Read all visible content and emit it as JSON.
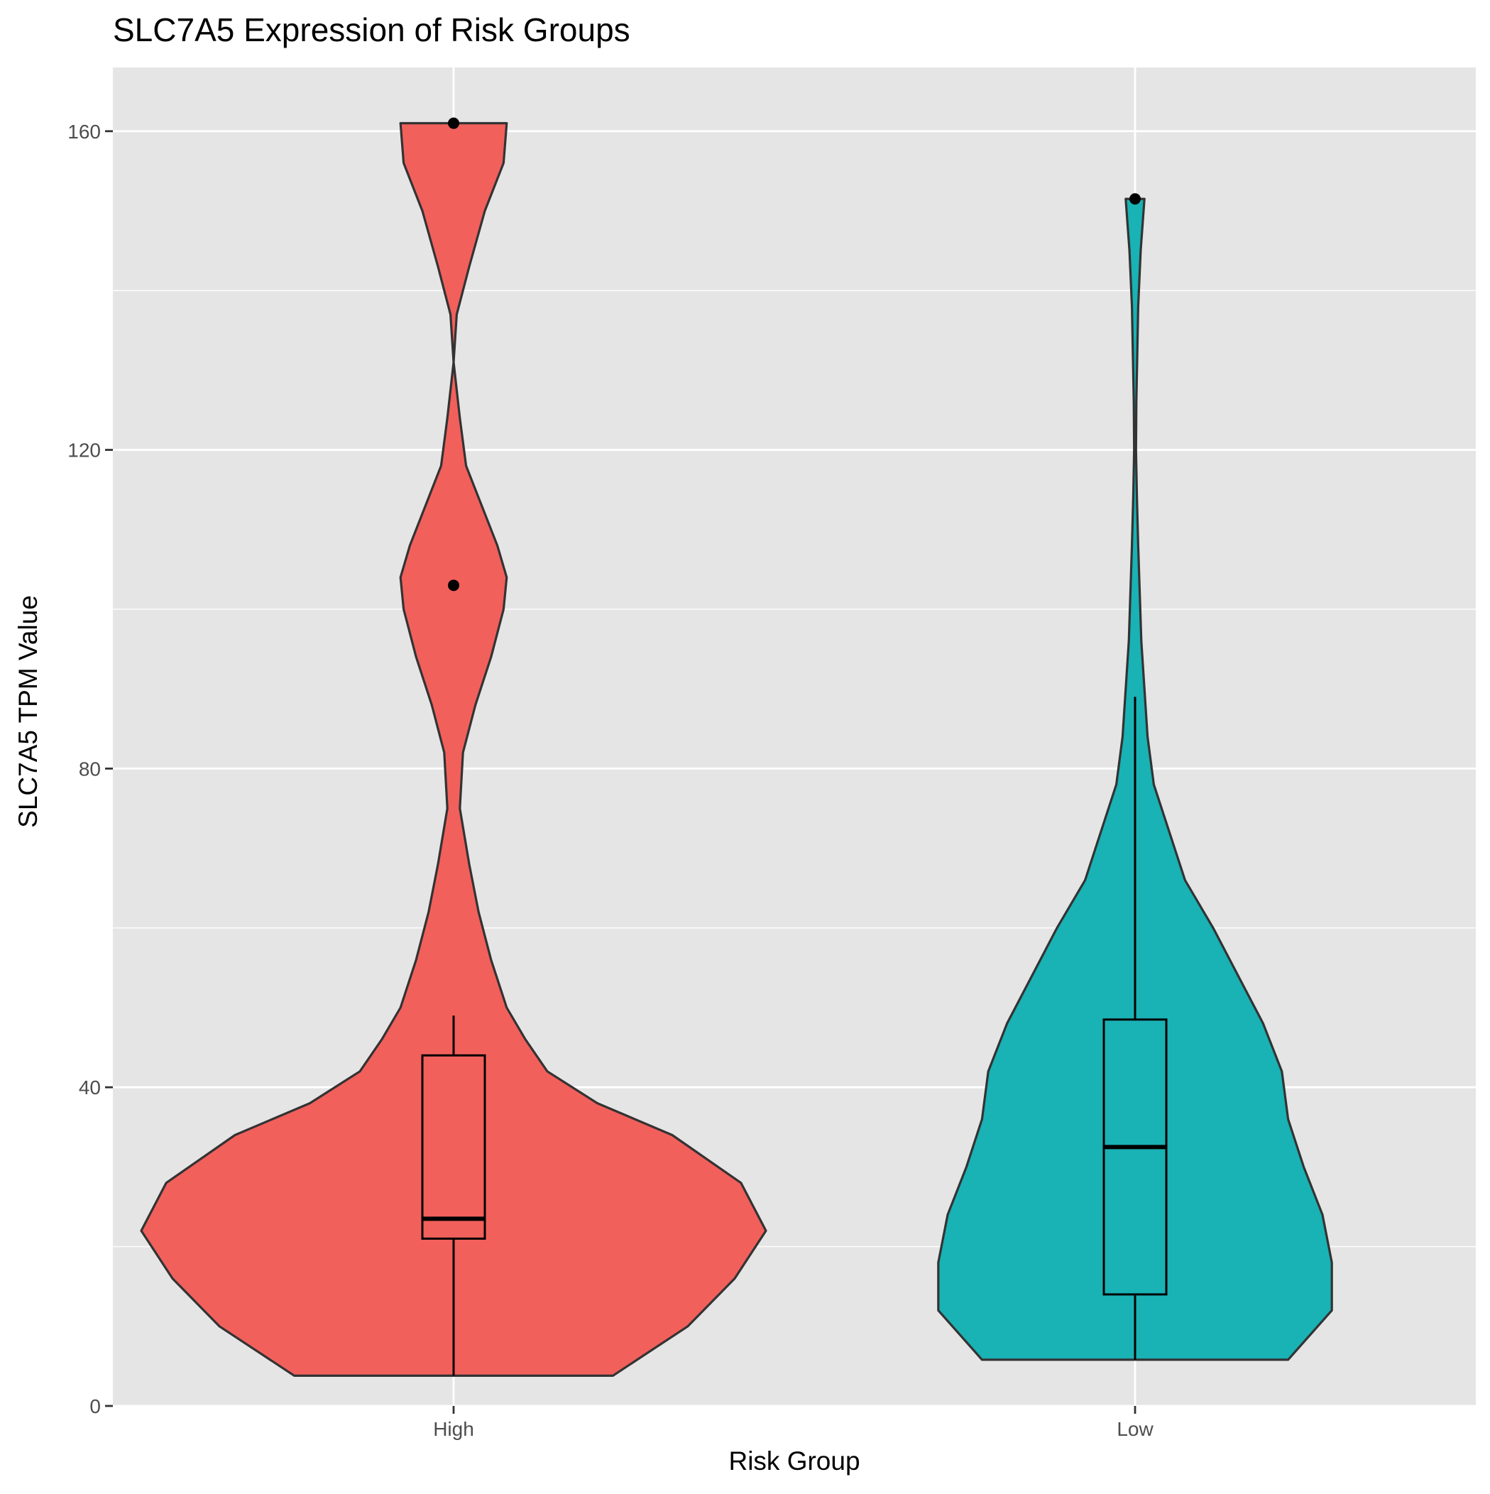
{
  "chart_data": {
    "type": "violin",
    "title": "SLC7A5 Expression of Risk Groups",
    "xlabel": "Risk Group",
    "ylabel": "SLC7A5 TPM Value",
    "ylim": [
      0,
      168
    ],
    "yticks": [
      0,
      40,
      80,
      120,
      160
    ],
    "grid": true,
    "categories": [
      "High",
      "Low"
    ],
    "colors": {
      "High": "#F2605C",
      "Low": "#19B2B5",
      "panel": "#E5E5E5",
      "grid": "#FFFFFF"
    },
    "series": [
      {
        "category": "High",
        "min": 3.8,
        "q1": 21,
        "median": 23.5,
        "q3": 44,
        "max": 161,
        "whisker_low": 3.8,
        "whisker_high": 49,
        "outliers": [
          161,
          103
        ],
        "density_profile": [
          [
            3.8,
            0.51
          ],
          [
            10,
            0.75
          ],
          [
            16,
            0.9
          ],
          [
            22,
            1.0
          ],
          [
            28,
            0.92
          ],
          [
            34,
            0.7
          ],
          [
            38,
            0.46
          ],
          [
            42,
            0.3
          ],
          [
            46,
            0.23
          ],
          [
            50,
            0.17
          ],
          [
            56,
            0.12
          ],
          [
            62,
            0.08
          ],
          [
            68,
            0.05
          ],
          [
            75,
            0.02
          ],
          [
            82,
            0.03
          ],
          [
            88,
            0.07
          ],
          [
            94,
            0.12
          ],
          [
            100,
            0.16
          ],
          [
            104,
            0.17
          ],
          [
            108,
            0.14
          ],
          [
            113,
            0.09
          ],
          [
            118,
            0.04
          ],
          [
            124,
            0.02
          ],
          [
            131,
            0.0
          ],
          [
            137,
            0.01
          ],
          [
            143,
            0.05
          ],
          [
            150,
            0.1
          ],
          [
            156,
            0.16
          ],
          [
            161,
            0.17
          ]
        ]
      },
      {
        "category": "Low",
        "min": 5.8,
        "q1": 14,
        "median": 32.5,
        "q3": 48.5,
        "max": 151.5,
        "whisker_low": 5.8,
        "whisker_high": 89,
        "outliers": [
          151.5
        ],
        "density_profile": [
          [
            5.8,
            0.49
          ],
          [
            12,
            0.63
          ],
          [
            18,
            0.63
          ],
          [
            24,
            0.6
          ],
          [
            30,
            0.54
          ],
          [
            36,
            0.49
          ],
          [
            42,
            0.47
          ],
          [
            48,
            0.41
          ],
          [
            54,
            0.33
          ],
          [
            60,
            0.25
          ],
          [
            66,
            0.16
          ],
          [
            72,
            0.11
          ],
          [
            78,
            0.06
          ],
          [
            84,
            0.04
          ],
          [
            90,
            0.03
          ],
          [
            96,
            0.02
          ],
          [
            102,
            0.015
          ],
          [
            108,
            0.01
          ],
          [
            114,
            0.006
          ],
          [
            120,
            0.003
          ],
          [
            126,
            0.004
          ],
          [
            132,
            0.007
          ],
          [
            138,
            0.01
          ],
          [
            145,
            0.018
          ],
          [
            151.5,
            0.03
          ]
        ]
      }
    ]
  }
}
